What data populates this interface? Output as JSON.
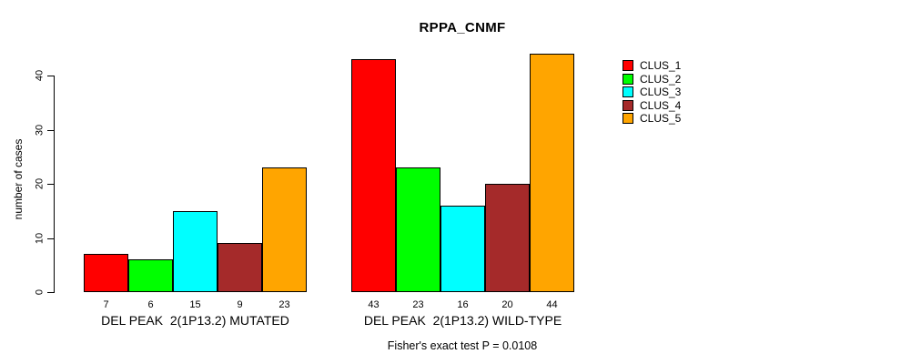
{
  "page": {
    "title": "RPPA_CNMF",
    "footer": "Fisher's exact test P = 0.0108",
    "background_color": "#ffffff",
    "axis_color": "#000000"
  },
  "chart_data": {
    "type": "bar",
    "title": "RPPA_CNMF",
    "xlabel": "",
    "ylabel": "number of cases",
    "ylim": [
      0,
      45
    ],
    "yticks": [
      0,
      10,
      20,
      30,
      40
    ],
    "grid": false,
    "legend_position": "right-inside",
    "categories": [
      "DEL PEAK  2(1P13.2) MUTATED",
      "DEL PEAK  2(1P13.2) WILD-TYPE"
    ],
    "series": [
      {
        "name": "CLUS_1",
        "color": "#FF0000",
        "values": [
          7,
          43
        ]
      },
      {
        "name": "CLUS_2",
        "color": "#00FF00",
        "values": [
          6,
          23
        ]
      },
      {
        "name": "CLUS_3",
        "color": "#00FFFF",
        "values": [
          15,
          16
        ]
      },
      {
        "name": "CLUS_4",
        "color": "#A52A2A",
        "values": [
          9,
          20
        ]
      },
      {
        "name": "CLUS_5",
        "color": "#FFA500",
        "values": [
          23,
          44
        ]
      }
    ],
    "bar_value_labels": [
      [
        7,
        6,
        15,
        9,
        23
      ],
      [
        43,
        23,
        16,
        20,
        44
      ]
    ],
    "annotation": "Fisher's exact test P = 0.0108"
  }
}
